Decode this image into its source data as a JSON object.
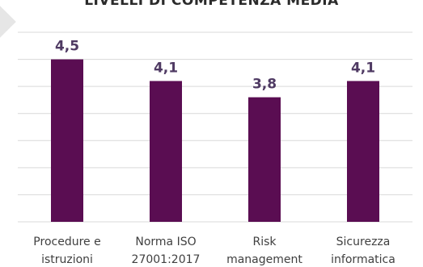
{
  "chart_data": {
    "type": "bar",
    "title": "LIVELLI DI COMPETENZA MEDIA",
    "categories": [
      [
        "Procedure e",
        "istruzioni"
      ],
      [
        "Norma ISO",
        "27001:2017"
      ],
      [
        "Risk",
        "management"
      ],
      [
        "Sicurezza",
        "informatica"
      ]
    ],
    "values": [
      4.5,
      4.1,
      3.8,
      4.1
    ],
    "value_labels": [
      "4,5",
      "4,1",
      "3,8",
      "4,1"
    ],
    "ylim": [
      1.5,
      5.0
    ],
    "grid": true,
    "bar_color": "#5a0d52",
    "value_label_color": "#4f3a63",
    "gridline_color": "#d9d9d9"
  }
}
